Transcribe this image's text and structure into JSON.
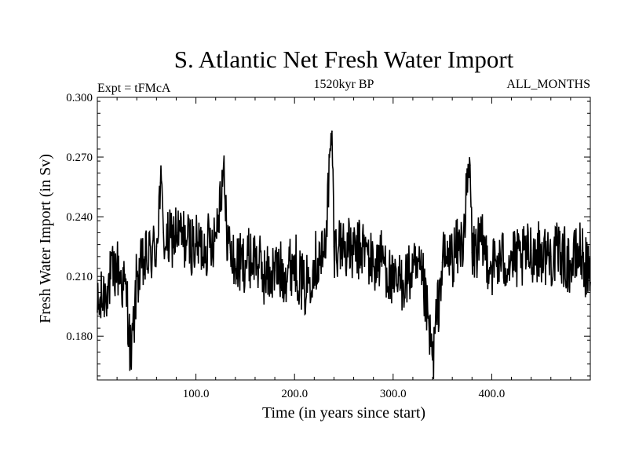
{
  "chart_data": {
    "type": "line",
    "title": "S. Atlantic Net Fresh Water Import",
    "subtitle_left": "Expt = tFMcA",
    "subtitle_center": "1520kyr BP",
    "subtitle_right": "ALL_MONTHS",
    "xlabel": "Time (in years since start)",
    "ylabel": "Fresh Water Import (in Sv)",
    "xlim": [
      0,
      500
    ],
    "ylim": [
      0.158,
      0.3
    ],
    "xticks": [
      100,
      200,
      300,
      400
    ],
    "xtick_labels": [
      "100.0",
      "200.0",
      "300.0",
      "400.0"
    ],
    "yticks": [
      0.18,
      0.21,
      0.24,
      0.27,
      0.3
    ],
    "ytick_labels": [
      "0.180",
      "0.210",
      "0.240",
      "0.270",
      "0.300"
    ],
    "grid": false,
    "series": [
      {
        "name": "Net fresh water import",
        "x": [
          0,
          10,
          20,
          30,
          34,
          37,
          40,
          50,
          60,
          64,
          67,
          70,
          80,
          90,
          100,
          110,
          120,
          128,
          130,
          135,
          140,
          150,
          160,
          170,
          180,
          190,
          200,
          210,
          220,
          230,
          238,
          240,
          245,
          250,
          260,
          270,
          280,
          290,
          300,
          310,
          320,
          330,
          340,
          350,
          360,
          370,
          378,
          380,
          390,
          400,
          410,
          420,
          430,
          440,
          450,
          460,
          470,
          480,
          490,
          500
        ],
        "values": [
          0.192,
          0.205,
          0.215,
          0.2,
          0.168,
          0.185,
          0.21,
          0.218,
          0.225,
          0.257,
          0.232,
          0.226,
          0.232,
          0.228,
          0.225,
          0.225,
          0.232,
          0.266,
          0.238,
          0.222,
          0.215,
          0.218,
          0.22,
          0.21,
          0.213,
          0.212,
          0.218,
          0.203,
          0.218,
          0.22,
          0.283,
          0.225,
          0.226,
          0.226,
          0.221,
          0.225,
          0.215,
          0.22,
          0.204,
          0.208,
          0.212,
          0.208,
          0.168,
          0.217,
          0.22,
          0.227,
          0.266,
          0.222,
          0.226,
          0.215,
          0.218,
          0.218,
          0.218,
          0.223,
          0.222,
          0.22,
          0.222,
          0.215,
          0.223,
          0.207
        ]
      }
    ]
  }
}
